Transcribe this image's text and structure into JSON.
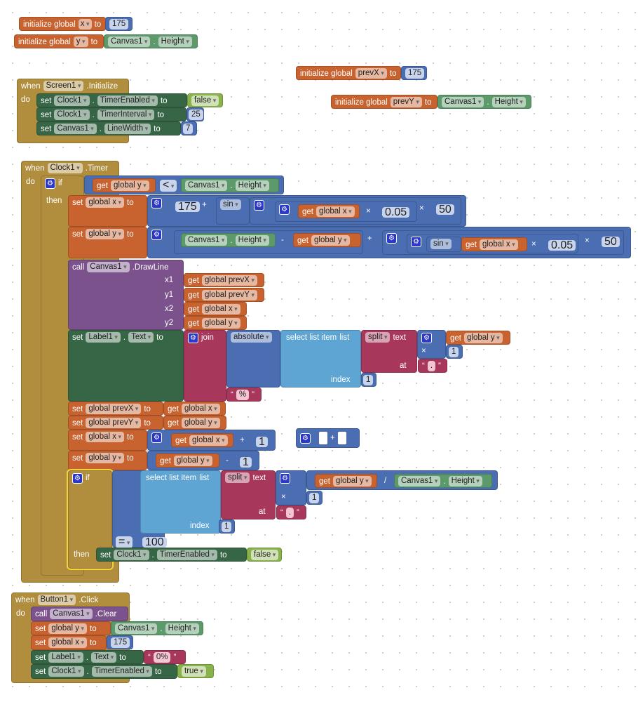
{
  "keywords": {
    "initialize_global": "initialize global",
    "to": "to",
    "when": "when",
    "do": "do",
    "set": "set",
    "get": "get",
    "if": "if",
    "then": "then",
    "call": "call",
    "join": "join",
    "select_list_item": "select list item",
    "list": "list",
    "index": "index",
    "split": "split",
    "text": "text",
    "at": "at",
    "dot": ".",
    "plus": "+",
    "minus": "-",
    "times": "×",
    "divide": "/",
    "lt": "<",
    "eq": "=",
    "x1": "x1",
    "y1": "y1",
    "x2": "x2",
    "y2": "y2",
    "sin": "sin",
    "absolute": "absolute",
    "open_quote": "“",
    "close_quote": "”"
  },
  "globals": {
    "x": "x",
    "y": "y",
    "prevX": "prevX",
    "prevY": "prevY"
  },
  "vars": {
    "gx": "global x",
    "gy": "global y",
    "gpx": "global prevX",
    "gpy": "global prevY"
  },
  "components": {
    "canvas": "Canvas1",
    "clock": "Clock1",
    "label": "Label1",
    "screen": "Screen1",
    "button": "Button1"
  },
  "props": {
    "height": "Height",
    "timer_enabled": "TimerEnabled",
    "timer_interval": "TimerInterval",
    "line_width": "LineWidth",
    "text": "Text"
  },
  "events": {
    "initialize": ".Initialize",
    "timer": ".Timer",
    "click": ".Click"
  },
  "methods": {
    "draw_line": ".DrawLine",
    "clear": ".Clear"
  },
  "numbers": {
    "n175": "175",
    "n25": "25",
    "n7": "7",
    "n005": "0.05",
    "n50": "50",
    "n1": "1",
    "n100": "100"
  },
  "strings": {
    "percent": "%",
    "dot": ".",
    "zero": "0%"
  },
  "booleans": {
    "false": "false",
    "true": "true"
  },
  "colors": {
    "control": "#b08e3d",
    "variables": "#c8622f",
    "math": "#4b6db1",
    "component_setter": "#376646",
    "component_getter": "#5c9a6c",
    "logic": "#8ab24b",
    "lists": "#5fa5d4",
    "text": "#a8375c",
    "procedure_call": "#7b528c",
    "selection_outline": "#f4d33a"
  }
}
